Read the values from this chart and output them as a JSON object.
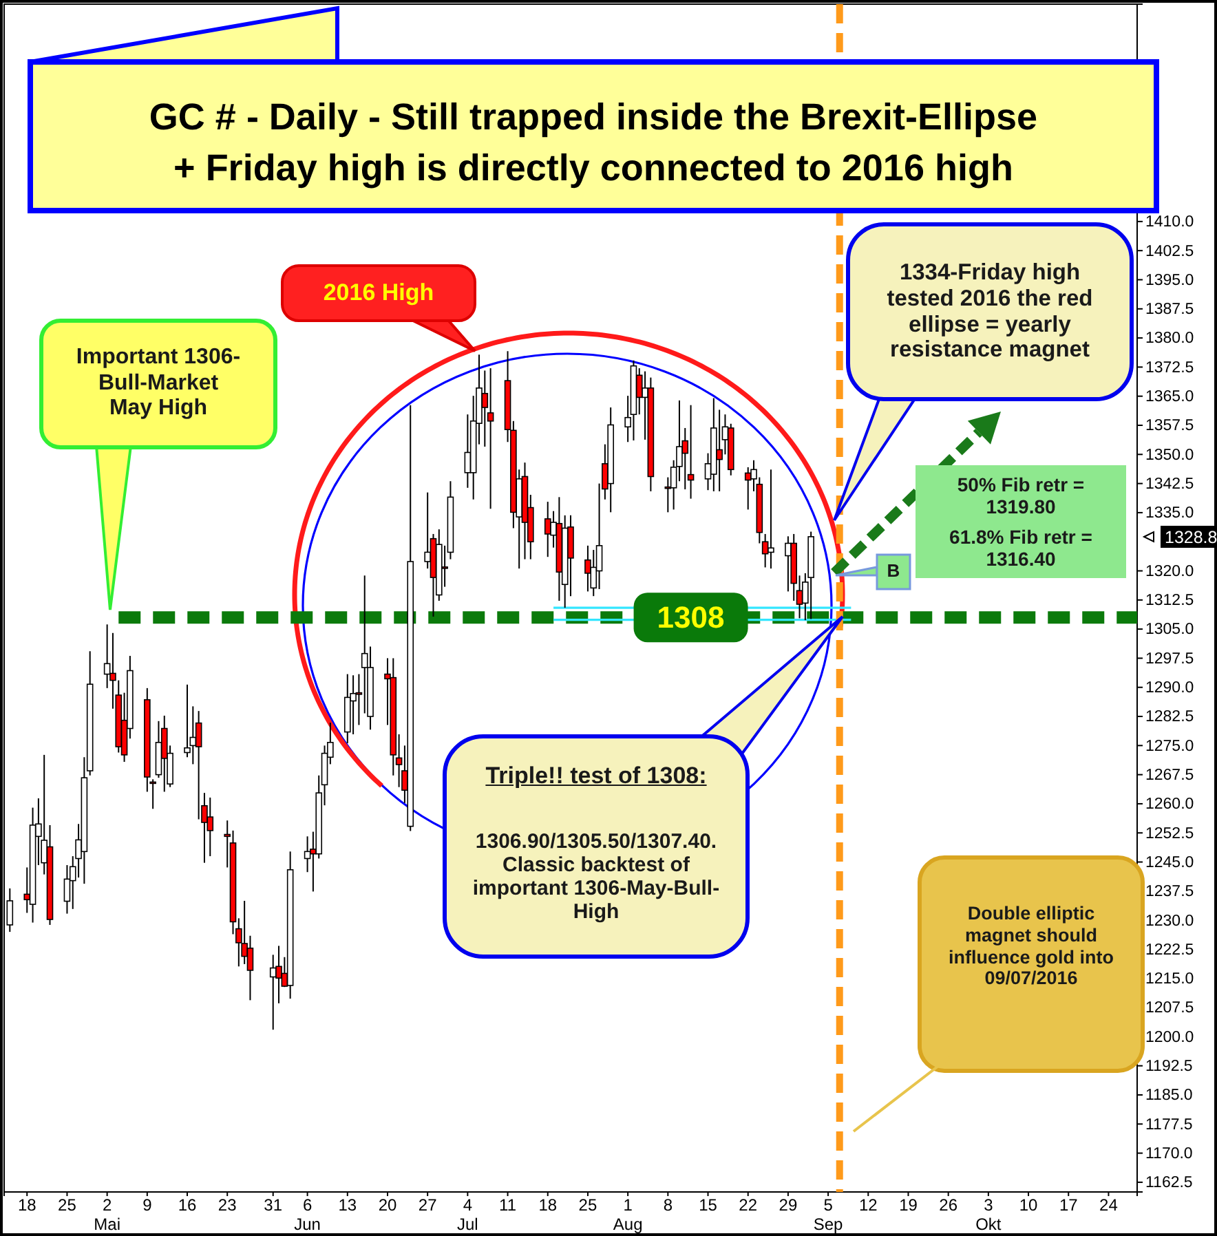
{
  "chart_data": {
    "type": "candlestick",
    "title": "GC # - Daily - Still trapped inside the Brexit-Ellipse",
    "subtitle": "+ Friday high is directly connected to 2016 high",
    "x": [
      "2016-04-15",
      "2016-04-18",
      "2016-04-19",
      "2016-04-20",
      "2016-04-21",
      "2016-04-22",
      "2016-04-25",
      "2016-04-26",
      "2016-04-27",
      "2016-04-28",
      "2016-04-29",
      "2016-05-02",
      "2016-05-03",
      "2016-05-04",
      "2016-05-05",
      "2016-05-06",
      "2016-05-09",
      "2016-05-10",
      "2016-05-11",
      "2016-05-12",
      "2016-05-13",
      "2016-05-16",
      "2016-05-17",
      "2016-05-18",
      "2016-05-19",
      "2016-05-20",
      "2016-05-23",
      "2016-05-24",
      "2016-05-25",
      "2016-05-26",
      "2016-05-27",
      "2016-05-31",
      "2016-06-01",
      "2016-06-02",
      "2016-06-03",
      "2016-06-06",
      "2016-06-07",
      "2016-06-08",
      "2016-06-09",
      "2016-06-10",
      "2016-06-13",
      "2016-06-14",
      "2016-06-15",
      "2016-06-16",
      "2016-06-17",
      "2016-06-20",
      "2016-06-21",
      "2016-06-22",
      "2016-06-23",
      "2016-06-24",
      "2016-06-27",
      "2016-06-28",
      "2016-06-29",
      "2016-06-30",
      "2016-07-01",
      "2016-07-04",
      "2016-07-05",
      "2016-07-06",
      "2016-07-07",
      "2016-07-08",
      "2016-07-11",
      "2016-07-12",
      "2016-07-13",
      "2016-07-14",
      "2016-07-15",
      "2016-07-18",
      "2016-07-19",
      "2016-07-20",
      "2016-07-21",
      "2016-07-22",
      "2016-07-25",
      "2016-07-26",
      "2016-07-27",
      "2016-07-28",
      "2016-07-29",
      "2016-08-01",
      "2016-08-02",
      "2016-08-03",
      "2016-08-04",
      "2016-08-05",
      "2016-08-08",
      "2016-08-09",
      "2016-08-10",
      "2016-08-11",
      "2016-08-12",
      "2016-08-15",
      "2016-08-16",
      "2016-08-17",
      "2016-08-18",
      "2016-08-19",
      "2016-08-22",
      "2016-08-23",
      "2016-08-24",
      "2016-08-25",
      "2016-08-26",
      "2016-08-29",
      "2016-08-30",
      "2016-08-31",
      "2016-09-01",
      "2016-09-02"
    ],
    "ohlc": [
      [
        1228.8,
        1238.2,
        1227.0,
        1235.0
      ],
      [
        1236.7,
        1243.6,
        1231.9,
        1235.3
      ],
      [
        1234.1,
        1259.0,
        1229.4,
        1254.5
      ],
      [
        1251.6,
        1261.4,
        1244.2,
        1254.8
      ],
      [
        1244.8,
        1272.6,
        1241.8,
        1250.6
      ],
      [
        1248.9,
        1254.5,
        1228.8,
        1230.2
      ],
      [
        1234.9,
        1244.2,
        1231.7,
        1240.6
      ],
      [
        1240.2,
        1246.5,
        1232.9,
        1243.8
      ],
      [
        1245.9,
        1254.8,
        1241.0,
        1250.7
      ],
      [
        1247.7,
        1272.0,
        1239.4,
        1266.7
      ],
      [
        1268.5,
        1299.3,
        1267.3,
        1290.8
      ],
      [
        1293.4,
        1306.2,
        1289.8,
        1296.1
      ],
      [
        1293.6,
        1304.0,
        1284.5,
        1291.8
      ],
      [
        1288.0,
        1291.8,
        1273.2,
        1274.7
      ],
      [
        1281.5,
        1288.6,
        1270.8,
        1272.6
      ],
      [
        1279.4,
        1298.1,
        1276.8,
        1294.3
      ],
      [
        1286.8,
        1289.8,
        1263.1,
        1266.9
      ],
      [
        1265.6,
        1266.3,
        1258.7,
        1265.4
      ],
      [
        1267.5,
        1281.3,
        1266.7,
        1275.8
      ],
      [
        1279.4,
        1282.7,
        1263.1,
        1271.7
      ],
      [
        1265.1,
        1275.0,
        1264.3,
        1273.0
      ],
      [
        1273.2,
        1290.7,
        1272.0,
        1274.4
      ],
      [
        1275.0,
        1285.1,
        1270.2,
        1277.1
      ],
      [
        1280.8,
        1283.9,
        1256.0,
        1274.7
      ],
      [
        1259.5,
        1262.8,
        1244.8,
        1255.2
      ],
      [
        1256.6,
        1261.6,
        1246.5,
        1253.1
      ],
      [
        1252.1,
        1255.7,
        1243.6,
        1251.6
      ],
      [
        1249.9,
        1253.1,
        1226.4,
        1229.6
      ],
      [
        1227.8,
        1230.5,
        1218.1,
        1224.2
      ],
      [
        1224.0,
        1235.0,
        1218.7,
        1220.7
      ],
      [
        1222.8,
        1226.0,
        1209.4,
        1217.1
      ],
      [
        1215.4,
        1221.1,
        1201.8,
        1217.7
      ],
      [
        1218.1,
        1223.4,
        1208.6,
        1215.1
      ],
      [
        1216.3,
        1220.5,
        1212.8,
        1213.0
      ],
      [
        1213.2,
        1247.7,
        1209.8,
        1243.0
      ],
      [
        1245.9,
        1251.6,
        1242.4,
        1247.7
      ],
      [
        1248.3,
        1252.8,
        1237.4,
        1247.1
      ],
      [
        1247.1,
        1267.3,
        1245.9,
        1262.8
      ],
      [
        1264.9,
        1275.0,
        1259.6,
        1273.0
      ],
      [
        1272.0,
        1280.9,
        1270.2,
        1275.8
      ],
      [
        1278.5,
        1293.4,
        1275.6,
        1287.4
      ],
      [
        1286.5,
        1293.1,
        1277.9,
        1288.4
      ],
      [
        1288.6,
        1293.4,
        1280.3,
        1288.2
      ],
      [
        1295.1,
        1318.8,
        1283.3,
        1298.7
      ],
      [
        1282.5,
        1300.5,
        1279.1,
        1295.1
      ],
      [
        1293.4,
        1297.5,
        1280.3,
        1292.2
      ],
      [
        1292.5,
        1297.5,
        1267.3,
        1272.6
      ],
      [
        1271.8,
        1277.9,
        1264.3,
        1270.1
      ],
      [
        1268.5,
        1275.0,
        1260.2,
        1263.5
      ],
      [
        1254.2,
        1362.7,
        1253.0,
        1322.4
      ],
      [
        1322.4,
        1340.2,
        1320.6,
        1324.8
      ],
      [
        1328.3,
        1329.5,
        1308.2,
        1318.3
      ],
      [
        1313.8,
        1330.7,
        1312.3,
        1326.8
      ],
      [
        1321.0,
        1326.5,
        1315.9,
        1320.8
      ],
      [
        1324.8,
        1343.1,
        1323.0,
        1339.0
      ],
      [
        1345.3,
        1360.3,
        1341.4,
        1350.5
      ],
      [
        1345.3,
        1365.1,
        1338.4,
        1358.6
      ],
      [
        1358.0,
        1375.7,
        1352.6,
        1367.1
      ],
      [
        1365.7,
        1371.6,
        1352.0,
        1362.1
      ],
      [
        1360.7,
        1372.2,
        1336.0,
        1358.6
      ],
      [
        1369.0,
        1376.6,
        1353.2,
        1356.4
      ],
      [
        1356.2,
        1358.6,
        1331.0,
        1335.1
      ],
      [
        1333.9,
        1346.1,
        1320.6,
        1343.7
      ],
      [
        1344.3,
        1347.9,
        1323.0,
        1332.5
      ],
      [
        1336.3,
        1339.6,
        1323.0,
        1327.5
      ],
      [
        1333.4,
        1337.8,
        1323.6,
        1329.5
      ],
      [
        1329.2,
        1335.4,
        1326.0,
        1332.5
      ],
      [
        1332.2,
        1339.0,
        1312.3,
        1319.7
      ],
      [
        1316.5,
        1334.3,
        1310.5,
        1331.0
      ],
      [
        1331.3,
        1334.3,
        1313.5,
        1323.3
      ],
      [
        1322.8,
        1326.5,
        1314.7,
        1319.4
      ],
      [
        1315.6,
        1325.4,
        1313.5,
        1320.9
      ],
      [
        1320.0,
        1342.5,
        1315.3,
        1326.5
      ],
      [
        1347.6,
        1352.6,
        1338.4,
        1341.1
      ],
      [
        1342.5,
        1362.1,
        1335.1,
        1357.6
      ],
      [
        1357.1,
        1365.1,
        1353.2,
        1359.5
      ],
      [
        1360.3,
        1374.2,
        1353.6,
        1372.8
      ],
      [
        1370.4,
        1372.2,
        1360.3,
        1364.7
      ],
      [
        1364.7,
        1371.4,
        1353.8,
        1367.1
      ],
      [
        1367.1,
        1369.8,
        1340.5,
        1344.3
      ],
      [
        1341.6,
        1344.1,
        1335.1,
        1341.4
      ],
      [
        1341.4,
        1348.5,
        1335.8,
        1346.7
      ],
      [
        1346.9,
        1363.9,
        1343.1,
        1352.0
      ],
      [
        1353.5,
        1356.8,
        1341.0,
        1350.3
      ],
      [
        1344.8,
        1362.7,
        1338.6,
        1343.4
      ],
      [
        1343.7,
        1350.3,
        1340.8,
        1347.6
      ],
      [
        1344.9,
        1364.5,
        1340.5,
        1356.8
      ],
      [
        1351.2,
        1361.5,
        1340.5,
        1348.7
      ],
      [
        1353.8,
        1360.3,
        1350.0,
        1357.1
      ],
      [
        1356.8,
        1357.9,
        1344.6,
        1346.1
      ],
      [
        1345.2,
        1346.7,
        1335.8,
        1343.4
      ],
      [
        1343.7,
        1348.5,
        1340.5,
        1346.1
      ],
      [
        1342.3,
        1344.1,
        1327.1,
        1329.9
      ],
      [
        1327.5,
        1329.5,
        1320.9,
        1324.4
      ],
      [
        1324.8,
        1346.1,
        1320.6,
        1325.9
      ],
      [
        1323.9,
        1328.9,
        1314.7,
        1327.1
      ],
      [
        1327.1,
        1329.5,
        1312.3,
        1316.8
      ],
      [
        1314.9,
        1318.8,
        1307.8,
        1311.4
      ],
      [
        1311.7,
        1319.4,
        1307.3,
        1317.1
      ],
      [
        1318.3,
        1330.1,
        1307.6,
        1328.8
      ]
    ],
    "series": [
      {
        "type": "line",
        "x": [
          "2016-05-04",
          "2016-10-29"
        ],
        "values": [
          1308,
          1308
        ],
        "color": "#0b7a0b",
        "line_style": "dashed"
      },
      {
        "type": "line",
        "x": [
          "2016-07-19",
          "2016-09-09"
        ],
        "values": [
          1310.5,
          1310.5
        ],
        "color": "#33e6ff",
        "line_style": "solid"
      },
      {
        "type": "line",
        "x": [
          "2016-07-19",
          "2016-09-09"
        ],
        "values": [
          1307.4,
          1307.4
        ],
        "color": "#33e6ff",
        "line_style": "solid"
      }
    ],
    "ref_lines": [
      {
        "axis": "x",
        "value": "2016-09-07",
        "color": "#ff9a1a",
        "line_style": "dashed"
      }
    ],
    "xlim": [
      "2016-04-14",
      "2016-10-29"
    ],
    "ylim": [
      1160,
      1466
    ],
    "xticks": [
      {
        "value": "2016-04-18",
        "label": "18"
      },
      {
        "value": "2016-04-25",
        "label": "25"
      },
      {
        "value": "2016-05-02",
        "label": "2\nMai"
      },
      {
        "value": "2016-05-09",
        "label": "9"
      },
      {
        "value": "2016-05-16",
        "label": "16"
      },
      {
        "value": "2016-05-23",
        "label": "23"
      },
      {
        "value": "2016-05-31",
        "label": "31"
      },
      {
        "value": "2016-06-06",
        "label": "6\nJun"
      },
      {
        "value": "2016-06-13",
        "label": "13"
      },
      {
        "value": "2016-06-20",
        "label": "20"
      },
      {
        "value": "2016-06-27",
        "label": "27"
      },
      {
        "value": "2016-07-04",
        "label": "4\nJul"
      },
      {
        "value": "2016-07-11",
        "label": "11"
      },
      {
        "value": "2016-07-18",
        "label": "18"
      },
      {
        "value": "2016-07-25",
        "label": "25"
      },
      {
        "value": "2016-08-01",
        "label": "1\nAug"
      },
      {
        "value": "2016-08-08",
        "label": "8"
      },
      {
        "value": "2016-08-15",
        "label": "15"
      },
      {
        "value": "2016-08-22",
        "label": "22"
      },
      {
        "value": "2016-08-29",
        "label": "29"
      },
      {
        "value": "2016-09-05",
        "label": "5\nSep"
      },
      {
        "value": "2016-09-12",
        "label": "12"
      },
      {
        "value": "2016-09-19",
        "label": "19"
      },
      {
        "value": "2016-09-26",
        "label": "26"
      },
      {
        "value": "2016-10-03",
        "label": "3\nOkt"
      },
      {
        "value": "2016-10-10",
        "label": "10"
      },
      {
        "value": "2016-10-17",
        "label": "17"
      },
      {
        "value": "2016-10-24",
        "label": "24"
      }
    ],
    "yticks": [
      1162.5,
      {
        "value": 1170,
        "label": "1170.0"
      },
      1177.5,
      {
        "value": 1185,
        "label": "1185.0"
      },
      1192.5,
      {
        "value": 1200,
        "label": "1200.0"
      },
      1207.5,
      {
        "value": 1215,
        "label": "1215.0"
      },
      1222.5,
      {
        "value": 1230,
        "label": "1230.0"
      },
      1237.5,
      {
        "value": 1245,
        "label": "1245.0"
      },
      1252.5,
      {
        "value": 1260,
        "label": "1260.0"
      },
      1267.5,
      {
        "value": 1275,
        "label": "1275.0"
      },
      1282.5,
      {
        "value": 1290,
        "label": "1290.0"
      },
      1297.5,
      {
        "value": 1305,
        "label": "1305.0"
      },
      1312.5,
      {
        "value": 1320,
        "label": "1320.0"
      },
      {
        "value": 1335,
        "label": "1335.0"
      },
      1342.5,
      {
        "value": 1350,
        "label": "1350.0"
      },
      1357.5,
      {
        "value": 1365,
        "label": "1365.0"
      },
      1372.5,
      {
        "value": 1380,
        "label": "1380.0"
      },
      1387.5,
      {
        "value": 1395,
        "label": "1395.0"
      },
      1402.5,
      {
        "value": 1410,
        "label": "1410.0"
      }
    ],
    "annotations": [
      "Important 1306-Bull-Market May High",
      "2016 High",
      "1334-Friday high tested 2016 the red ellipse = yearly resistance magnet",
      "50% Fib retr = 1319.80",
      "61.8% Fib retr = 1316.40",
      "B",
      {
        "text": "1308",
        "x": "2016-08-12",
        "y": 1308
      },
      "Triple!! test of 1308:",
      "1306.90/1305.50/1307.40. Classic backtest of important 1306-May-Bull-High",
      "Double elliptic magnet should influence gold into 09/07/2016",
      "1328.8"
    ]
  }
}
